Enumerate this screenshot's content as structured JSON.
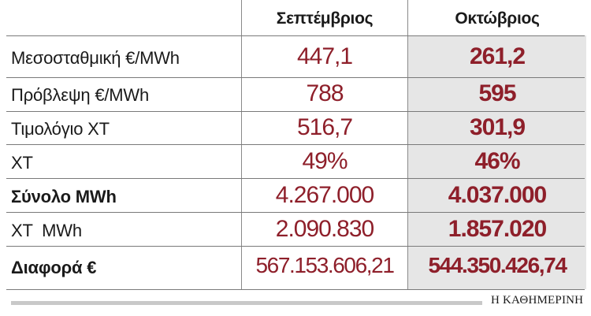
{
  "header": {
    "col1": "Σεπτέμβριος",
    "col2": "Οκτώβριος"
  },
  "rows": [
    {
      "label": "Μεσοσταθμική €/MWh",
      "sept": "447,1",
      "oct": "261,2",
      "bold_label": false
    },
    {
      "label": "Πρόβλεψη €/MWh",
      "sept": "788",
      "oct": "595",
      "bold_label": false
    },
    {
      "label": "Τιμολόγιο ΧΤ",
      "sept": "516,7",
      "oct": "301,9",
      "bold_label": false
    },
    {
      "label": "ΧΤ",
      "sept": "49%",
      "oct": "46%",
      "bold_label": false
    },
    {
      "label": "Σύνολο MWh",
      "sept": "4.267.000",
      "oct": "4.037.000",
      "bold_label": true
    },
    {
      "label": "ΧΤ  MWh",
      "sept": "2.090.830",
      "oct": "1.857.020",
      "bold_label": false
    },
    {
      "label": "Διαφορά €",
      "sept": "567.153.606,21",
      "oct": "544.350.426,74",
      "bold_label": true
    }
  ],
  "footer": {
    "source": "Η ΚΑΘΗΜΕΡΙΝΗ"
  },
  "colors": {
    "value_red": "#8e1f2a",
    "highlight_bg": "#e6e6e6",
    "rule": "#7a7a7a"
  }
}
